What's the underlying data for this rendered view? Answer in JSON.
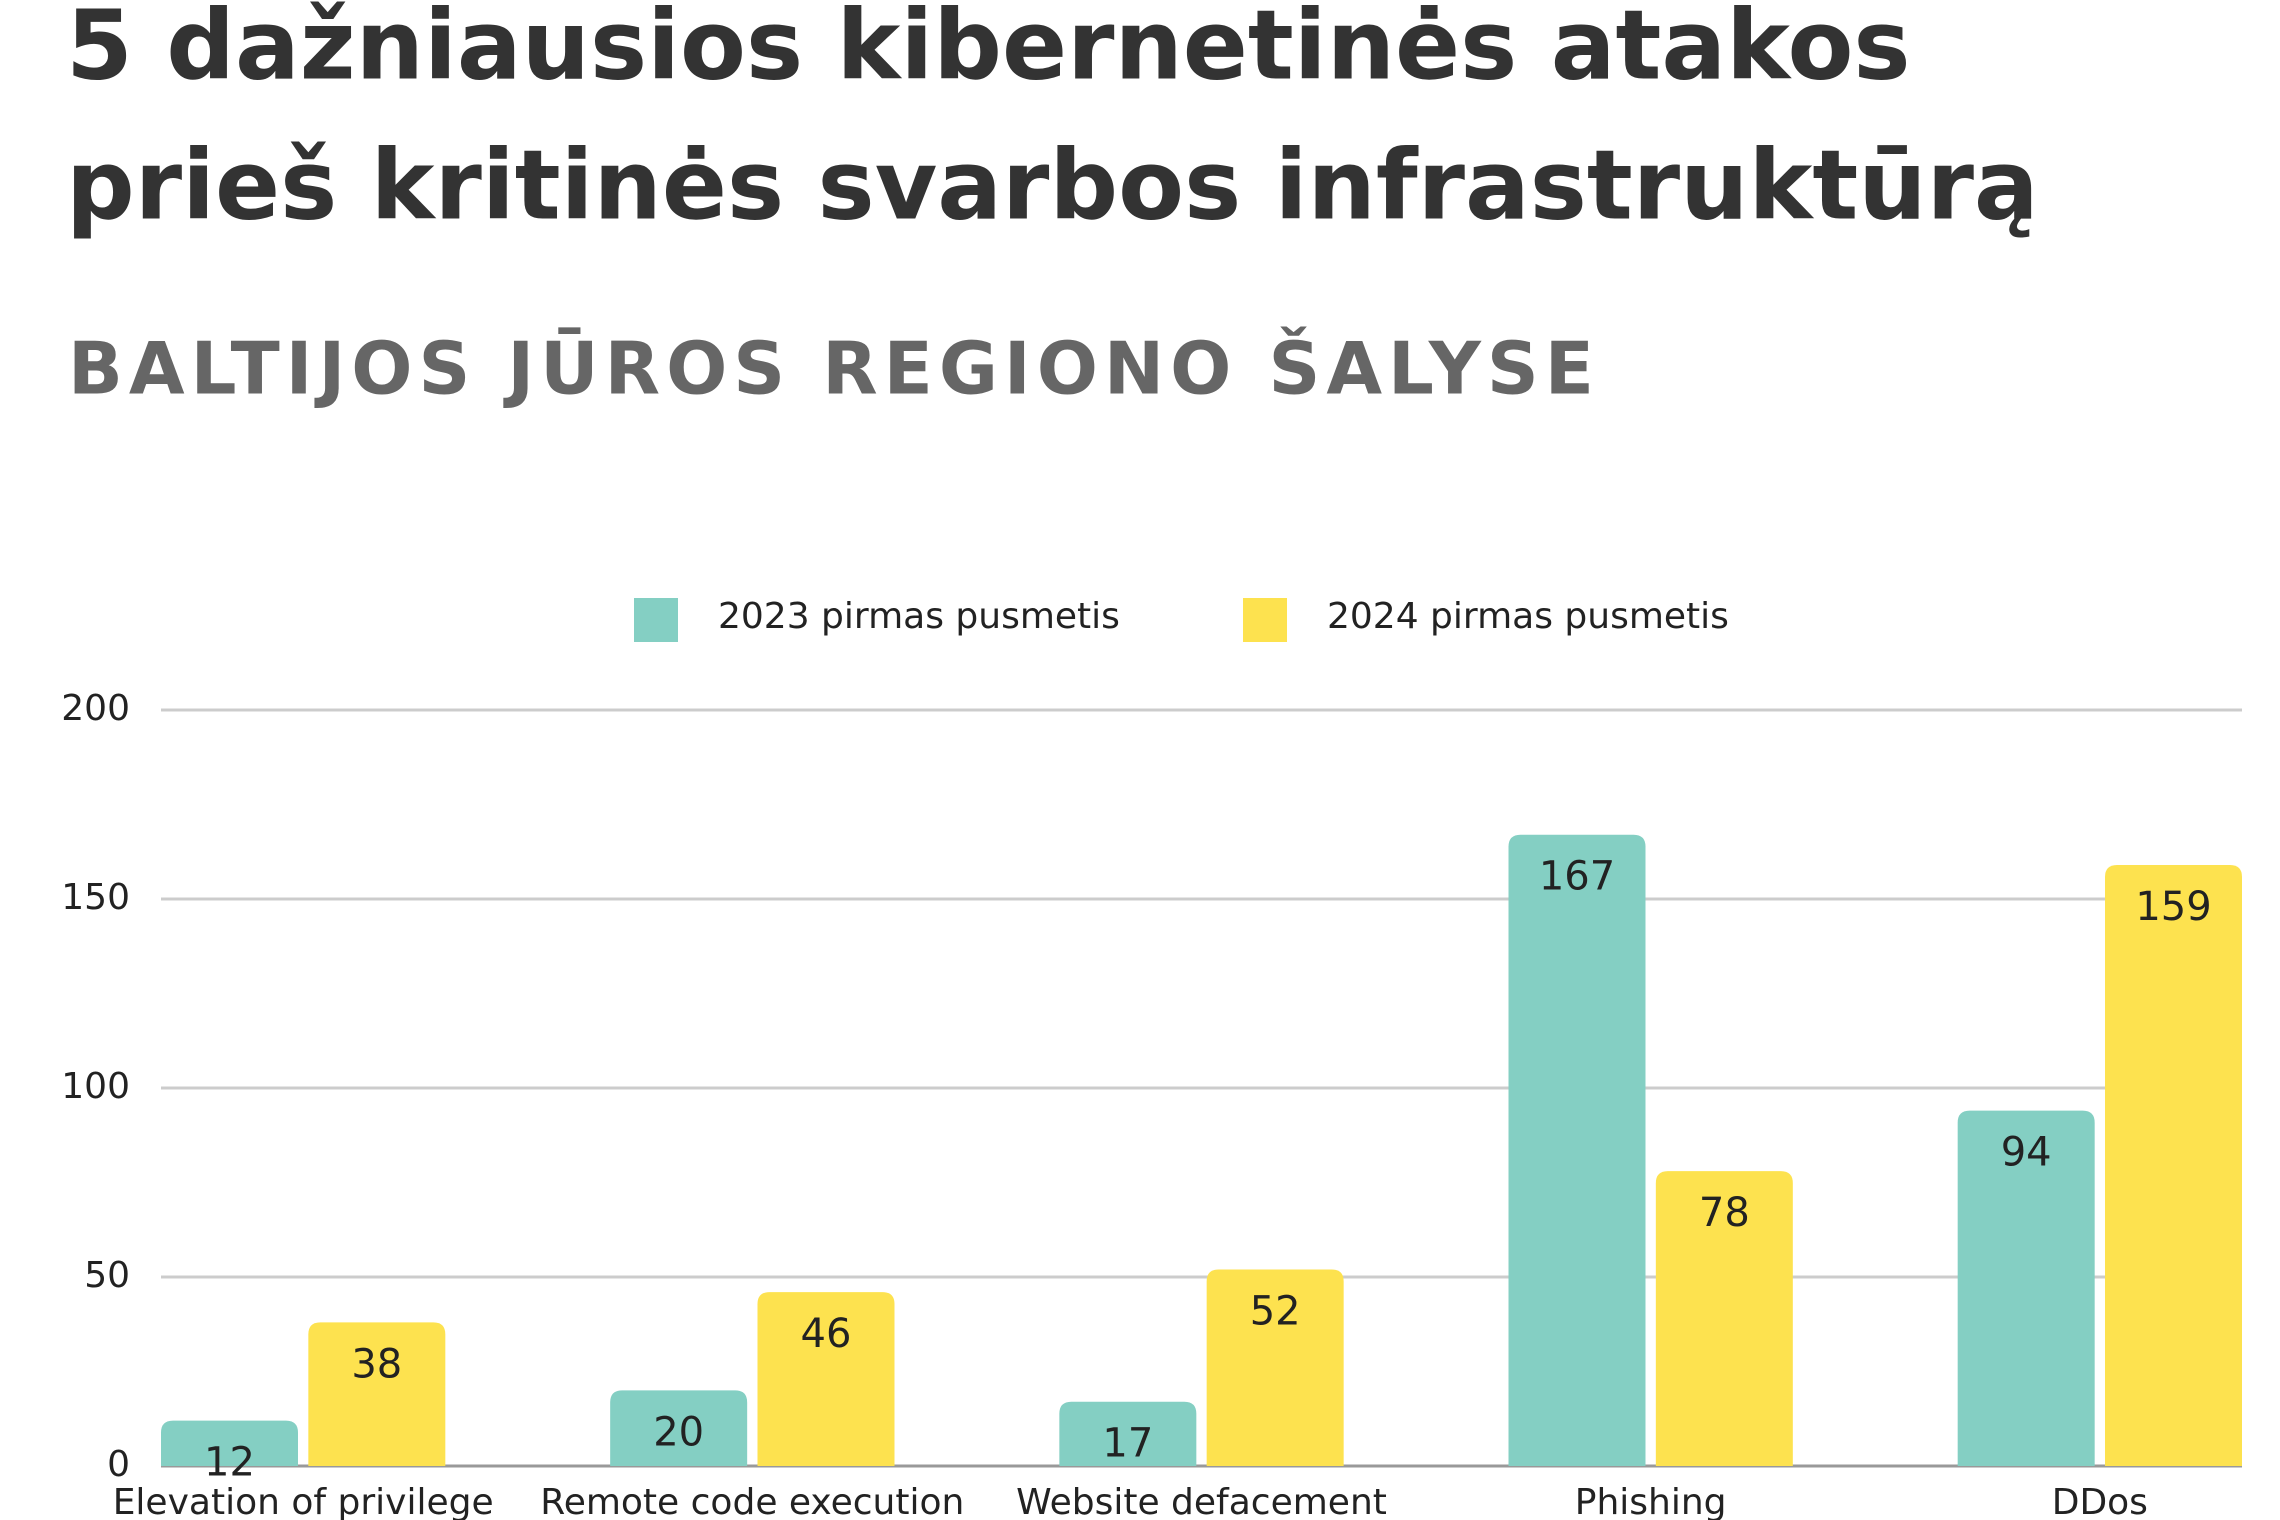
{
  "chart_data": {
    "type": "bar",
    "title": [
      "5 dažniausios kibernetinės atakos",
      "prieš kritinės svarbos infrastruktūrą"
    ],
    "subtitle": "BALTIJOS JŪROS REGIONO ŠALYSE",
    "categories": [
      "Elevation of privilege",
      "Remote code execution",
      "Website defacement",
      "Phishing",
      "DDos"
    ],
    "series": [
      {
        "name": "2023 pirmas pusmetis",
        "color": "#84cfc3",
        "values": [
          12,
          20,
          17,
          167,
          94
        ]
      },
      {
        "name": "2024 pirmas pusmetis",
        "color": "#fde24f",
        "values": [
          38,
          46,
          52,
          78,
          159
        ]
      }
    ],
    "ylim": [
      0,
      200
    ],
    "yticks": [
      0,
      50,
      100,
      150,
      200
    ],
    "grid": true,
    "legend": "top"
  }
}
